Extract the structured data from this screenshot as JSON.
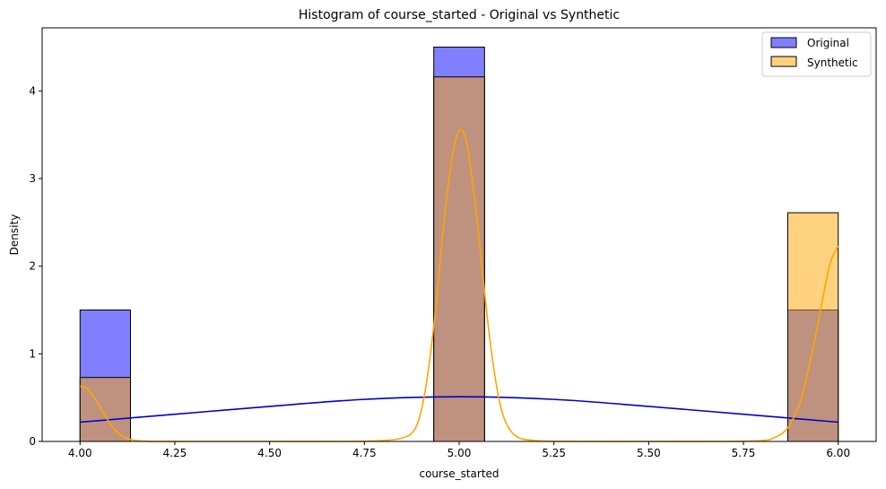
{
  "chart_data": {
    "type": "bar",
    "title": "Histogram of course_started - Original vs Synthetic",
    "xlabel": "course_started",
    "ylabel": "Density",
    "xlim": [
      3.9,
      6.1
    ],
    "ylim": [
      0,
      4.72
    ],
    "xticks": [
      "4.00",
      "4.25",
      "4.50",
      "4.75",
      "5.00",
      "5.25",
      "5.50",
      "5.75",
      "6.00"
    ],
    "yticks": [
      "0",
      "1",
      "2",
      "3",
      "4"
    ],
    "grid": false,
    "legend": {
      "placement": "top-right"
    },
    "series": [
      {
        "name": "Original",
        "color": "#0000ff",
        "bins": [
          {
            "x0": 4.0,
            "x1": 4.133,
            "value": 1.5
          },
          {
            "x0": 4.933,
            "x1": 5.067,
            "value": 4.5
          },
          {
            "x0": 5.867,
            "x1": 6.0,
            "value": 1.5
          }
        ],
        "kde": {
          "x": [
            4.0,
            4.25,
            4.5,
            4.75,
            5.0,
            5.25,
            5.5,
            5.75,
            6.0
          ],
          "y": [
            0.22,
            0.31,
            0.4,
            0.48,
            0.51,
            0.48,
            0.4,
            0.31,
            0.22
          ]
        }
      },
      {
        "name": "Synthetic",
        "color": "#ffa500",
        "bins": [
          {
            "x0": 4.0,
            "x1": 4.133,
            "value": 0.73
          },
          {
            "x0": 4.933,
            "x1": 5.067,
            "value": 4.16
          },
          {
            "x0": 5.867,
            "x1": 6.0,
            "value": 2.61
          }
        ],
        "kde": {
          "x": [
            4.0,
            4.02,
            4.04,
            4.06,
            4.08,
            4.1,
            4.12,
            4.15,
            4.2,
            4.3,
            4.5,
            4.7,
            4.8,
            4.85,
            4.88,
            4.9,
            4.92,
            4.94,
            4.96,
            4.98,
            5.0,
            5.02,
            5.04,
            5.06,
            5.08,
            5.1,
            5.12,
            5.15,
            5.2,
            5.3,
            5.5,
            5.7,
            5.8,
            5.83,
            5.86,
            5.88,
            5.9,
            5.92,
            5.94,
            5.96,
            5.98,
            6.0
          ],
          "y": [
            0.63,
            0.6,
            0.48,
            0.34,
            0.2,
            0.1,
            0.04,
            0.01,
            0.0,
            0.0,
            0.0,
            0.0,
            0.01,
            0.04,
            0.12,
            0.35,
            0.85,
            1.6,
            2.5,
            3.2,
            3.55,
            3.4,
            2.8,
            2.0,
            1.2,
            0.6,
            0.25,
            0.06,
            0.01,
            0.0,
            0.0,
            0.0,
            0.01,
            0.04,
            0.12,
            0.25,
            0.45,
            0.8,
            1.2,
            1.65,
            2.05,
            2.23
          ]
        }
      }
    ]
  }
}
